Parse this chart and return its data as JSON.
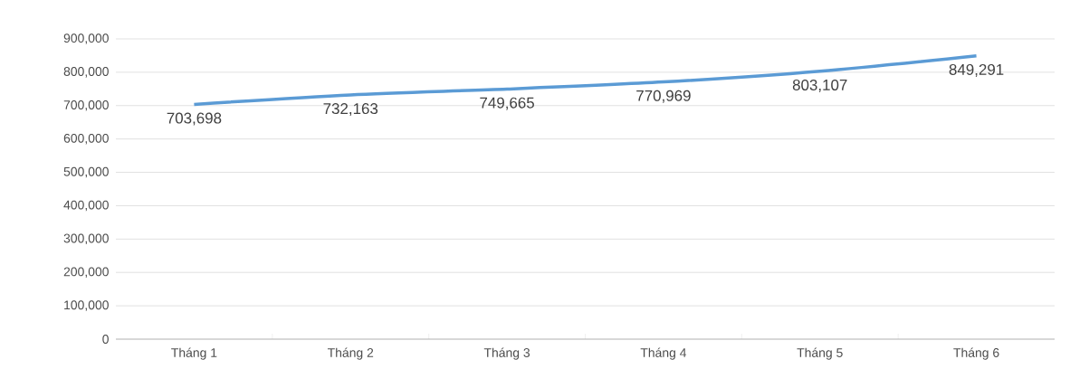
{
  "chart_data": {
    "type": "line",
    "categories": [
      "Tháng 1",
      "Tháng 2",
      "Tháng 3",
      "Tháng 4",
      "Tháng 5",
      "Tháng 6"
    ],
    "values": [
      703698,
      732163,
      749665,
      770969,
      803107,
      849291
    ],
    "value_labels": [
      "703,698",
      "732,163",
      "749,665",
      "770,969",
      "803,107",
      "849,291"
    ],
    "color": "#5b9bd5",
    "ylim": [
      0,
      900000
    ],
    "yticks": [
      0,
      {
        "value": 100000,
        "label": "100,000"
      },
      {
        "value": 200000,
        "label": "200,000"
      },
      {
        "value": 300000,
        "label": "300,000"
      },
      {
        "value": 400000,
        "label": "400,000"
      },
      {
        "value": 500000,
        "label": "500,000"
      },
      {
        "value": 600000,
        "label": "600,000"
      },
      {
        "value": 700000,
        "label": "700,000"
      },
      {
        "value": 800000,
        "label": "800,000"
      },
      {
        "value": 900000,
        "label": "900,000"
      }
    ],
    "grid": "y",
    "marker": "none",
    "line_style": "solid"
  }
}
